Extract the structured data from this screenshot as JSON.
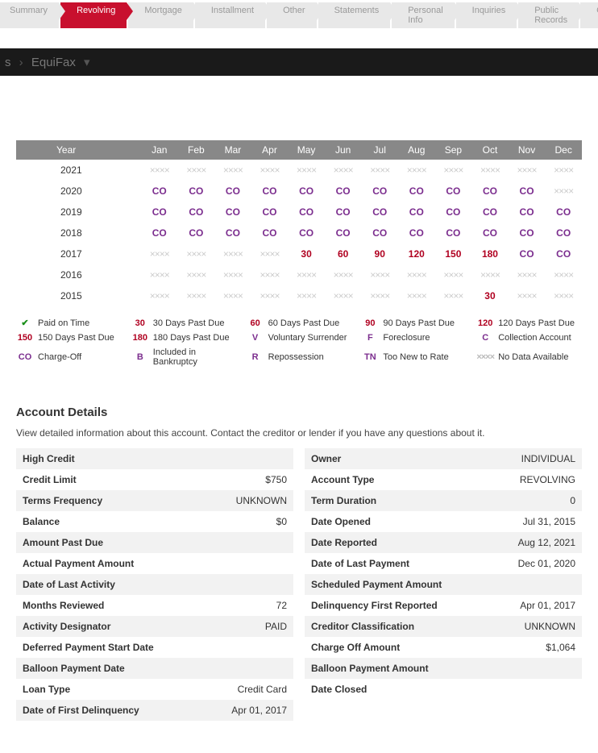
{
  "tabs": [
    {
      "label": "Summary",
      "active": false
    },
    {
      "label": "Revolving",
      "active": true
    },
    {
      "label": "Mortgage",
      "active": false
    },
    {
      "label": "Installment",
      "active": false
    },
    {
      "label": "Other",
      "active": false
    },
    {
      "label": "Statements",
      "active": false
    },
    {
      "label": "Personal Info",
      "active": false
    },
    {
      "label": "Inquiries",
      "active": false
    },
    {
      "label": "Public Records",
      "active": false
    },
    {
      "label": "Collections",
      "active": false
    }
  ],
  "breadcrumb": {
    "item1": "s",
    "item2": "EquiFax"
  },
  "history": {
    "columns": [
      "Year",
      "Jan",
      "Feb",
      "Mar",
      "Apr",
      "May",
      "Jun",
      "Jul",
      "Aug",
      "Sep",
      "Oct",
      "Nov",
      "Dec"
    ],
    "rows": [
      {
        "year": "2021",
        "cells": [
          "nd",
          "nd",
          "nd",
          "nd",
          "nd",
          "nd",
          "nd",
          "nd",
          "nd",
          "nd",
          "nd",
          "nd"
        ]
      },
      {
        "year": "2020",
        "cells": [
          "CO",
          "CO",
          "CO",
          "CO",
          "CO",
          "CO",
          "CO",
          "CO",
          "CO",
          "CO",
          "CO",
          "nd"
        ]
      },
      {
        "year": "2019",
        "cells": [
          "CO",
          "CO",
          "CO",
          "CO",
          "CO",
          "CO",
          "CO",
          "CO",
          "CO",
          "CO",
          "CO",
          "CO"
        ]
      },
      {
        "year": "2018",
        "cells": [
          "CO",
          "CO",
          "CO",
          "CO",
          "CO",
          "CO",
          "CO",
          "CO",
          "CO",
          "CO",
          "CO",
          "CO"
        ]
      },
      {
        "year": "2017",
        "cells": [
          "nd",
          "nd",
          "nd",
          "nd",
          "30",
          "60",
          "90",
          "120",
          "150",
          "180",
          "CO",
          "CO"
        ]
      },
      {
        "year": "2016",
        "cells": [
          "nd",
          "nd",
          "nd",
          "nd",
          "nd",
          "nd",
          "nd",
          "nd",
          "nd",
          "nd",
          "nd",
          "nd"
        ]
      },
      {
        "year": "2015",
        "cells": [
          "nd",
          "nd",
          "nd",
          "nd",
          "nd",
          "nd",
          "nd",
          "nd",
          "nd",
          "30",
          "nd",
          "nd"
        ]
      }
    ]
  },
  "legend": {
    "paid_on_time": "Paid on Time",
    "d30": "30 Days Past Due",
    "d60": "60 Days Past Due",
    "d90": "90 Days Past Due",
    "d120": "120 Days Past Due",
    "d150": "150 Days Past Due",
    "d180": "180 Days Past Due",
    "v": "Voluntary Surrender",
    "f": "Foreclosure",
    "c": "Collection Account",
    "co": "Charge-Off",
    "b": "Included in Bankruptcy",
    "r": "Repossession",
    "tn": "Too New to Rate",
    "nd": "No Data Available"
  },
  "account": {
    "title": "Account Details",
    "desc": "View detailed information about this account. Contact the creditor or lender if you have any questions about it.",
    "left": [
      {
        "label": "High Credit",
        "value": ""
      },
      {
        "label": "Credit Limit",
        "value": "$750"
      },
      {
        "label": "Terms Frequency",
        "value": "UNKNOWN"
      },
      {
        "label": "Balance",
        "value": "$0"
      },
      {
        "label": "Amount Past Due",
        "value": ""
      },
      {
        "label": "Actual Payment Amount",
        "value": ""
      },
      {
        "label": "Date of Last Activity",
        "value": ""
      },
      {
        "label": "Months Reviewed",
        "value": "72"
      },
      {
        "label": "Activity Designator",
        "value": "PAID"
      },
      {
        "label": "Deferred Payment Start Date",
        "value": ""
      },
      {
        "label": "Balloon Payment Date",
        "value": ""
      },
      {
        "label": "Loan Type",
        "value": "Credit Card"
      },
      {
        "label": "Date of First Delinquency",
        "value": "Apr 01, 2017"
      }
    ],
    "right": [
      {
        "label": "Owner",
        "value": "INDIVIDUAL"
      },
      {
        "label": "Account Type",
        "value": "REVOLVING"
      },
      {
        "label": "Term Duration",
        "value": "0"
      },
      {
        "label": "Date Opened",
        "value": "Jul 31, 2015"
      },
      {
        "label": "Date Reported",
        "value": "Aug 12, 2021"
      },
      {
        "label": "Date of Last Payment",
        "value": "Dec 01, 2020"
      },
      {
        "label": "Scheduled Payment Amount",
        "value": ""
      },
      {
        "label": "Delinquency First Reported",
        "value": "Apr 01, 2017"
      },
      {
        "label": "Creditor Classification",
        "value": "UNKNOWN"
      },
      {
        "label": "Charge Off Amount",
        "value": "$1,064"
      },
      {
        "label": "Balloon Payment Amount",
        "value": ""
      },
      {
        "label": "Date Closed",
        "value": ""
      }
    ]
  },
  "nodata_glyph": "××××"
}
